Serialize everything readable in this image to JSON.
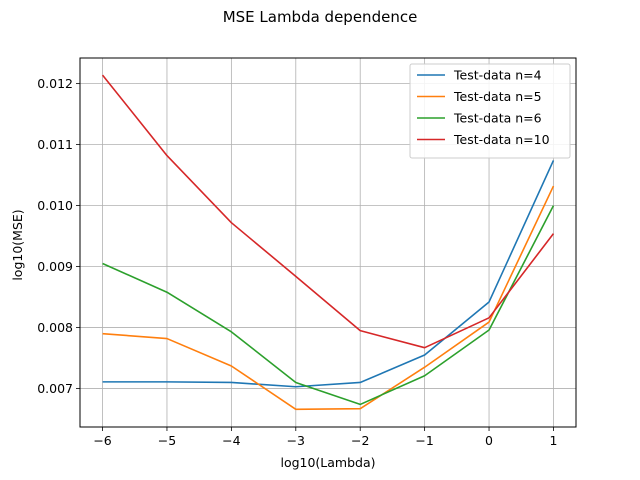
{
  "chart_data": {
    "type": "line",
    "title": "MSE Lambda dependence",
    "xlabel": "log10(Lambda)",
    "ylabel": "log10(MSE)",
    "x": [
      -6,
      -5,
      -4,
      -3,
      -2,
      -1,
      0,
      1
    ],
    "xlim": [
      -6.35,
      1.35
    ],
    "ylim": [
      0.00637,
      0.01242
    ],
    "xticks": [
      -6,
      -5,
      -4,
      -3,
      -2,
      -1,
      0,
      1
    ],
    "xtick_labels": [
      "−6",
      "−5",
      "−4",
      "−3",
      "−2",
      "−1",
      "0",
      "1"
    ],
    "yticks": [
      0.007,
      0.008,
      0.009,
      0.01,
      0.011,
      0.012
    ],
    "ytick_labels": [
      "0.007",
      "0.008",
      "0.009",
      "0.010",
      "0.011",
      "0.012"
    ],
    "grid": true,
    "legend_position": "top-right",
    "series": [
      {
        "name": "Test-data n=4",
        "color": "#1f77b4",
        "values": [
          0.00711,
          0.00711,
          0.0071,
          0.00703,
          0.0071,
          0.00755,
          0.00842,
          0.01074
        ]
      },
      {
        "name": "Test-data n=5",
        "color": "#ff7f0e",
        "values": [
          0.0079,
          0.00782,
          0.00737,
          0.00666,
          0.00667,
          0.00735,
          0.00809,
          0.01032
        ]
      },
      {
        "name": "Test-data n=6",
        "color": "#2ca02c",
        "values": [
          0.00905,
          0.00858,
          0.00793,
          0.0071,
          0.00674,
          0.00721,
          0.00796,
          0.01
        ]
      },
      {
        "name": "Test-data n=10",
        "color": "#d62728",
        "values": [
          0.01214,
          0.01082,
          0.00972,
          0.00884,
          0.00795,
          0.00767,
          0.00816,
          0.00954
        ]
      }
    ]
  }
}
